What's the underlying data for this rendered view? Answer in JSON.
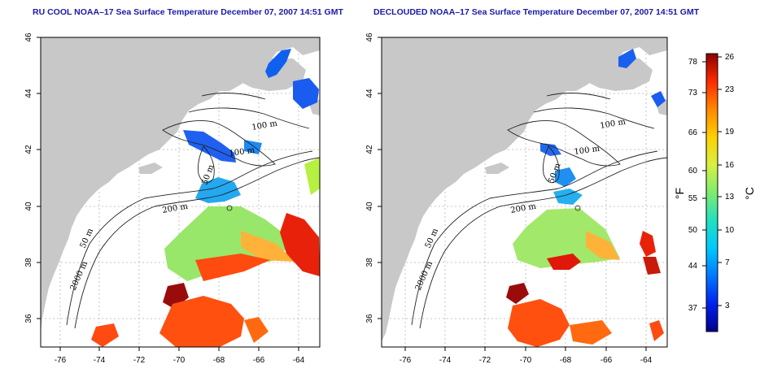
{
  "panels": [
    {
      "id": "left",
      "title": "RU COOL NOAA–17 Sea Surface Temperature December 07, 2007 14:51 GMT"
    },
    {
      "id": "right",
      "title": "DECLOUDED NOAA–17 Sea Surface Temperature December 07, 2007 14:51 GMT"
    }
  ],
  "axes": {
    "longitude_ticks": [
      "-76",
      "-74",
      "-72",
      "-70",
      "-68",
      "-66",
      "-64"
    ],
    "latitude_ticks": [
      "36",
      "38",
      "40",
      "42",
      "44",
      "46"
    ],
    "lon_range": [
      -77,
      -63
    ],
    "lat_range": [
      35,
      46
    ]
  },
  "contour_labels": {
    "left": [
      "100 m",
      "100 m",
      "50 m",
      "200 m",
      "50 m",
      "2000 m"
    ],
    "right": [
      "100 m",
      "100 m",
      "50 m",
      "200 m",
      "50 m",
      "2000 m"
    ]
  },
  "colorbar": {
    "fahrenheit_labels": [
      "78",
      "73",
      "66",
      "60",
      "55",
      "50",
      "44",
      "37"
    ],
    "celsius_labels": [
      "26",
      "23",
      "19",
      "16",
      "13",
      "10",
      "7",
      "3"
    ],
    "fahrenheit_unit": "°F",
    "celsius_unit": "°C",
    "colors": [
      "#00008b",
      "#0022ee",
      "#0077ff",
      "#00c8ff",
      "#22e0c0",
      "#7fec6e",
      "#d8f040",
      "#ffd000",
      "#ff8800",
      "#ff2a00",
      "#c80000",
      "#8b0000"
    ]
  },
  "colors": {
    "land": "#c8c8c8",
    "ocean": "#ffffff",
    "grid": "#b4b4b4",
    "title": "#1a1aa6"
  }
}
